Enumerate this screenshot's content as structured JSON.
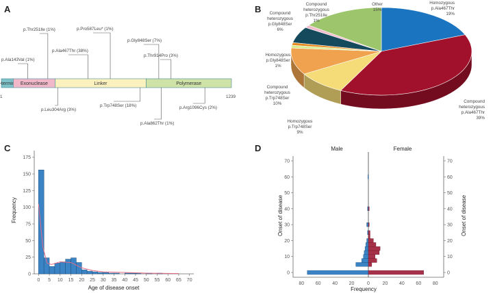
{
  "panel_letters": [
    "A",
    "B",
    "C",
    "D"
  ],
  "colors": {
    "nterminal": "#7fc3cb",
    "exonuclease": "#f0b8c8",
    "linker": "#fbf1bf",
    "polymerase": "#cfe2a8",
    "histogram": "#3a84c6",
    "male": "#3a84c6",
    "female": "#a8314a",
    "curve": "#e46b86"
  },
  "panel_a": {
    "domains": [
      {
        "name": "N-terminal",
        "start": 1,
        "end": 65
      },
      {
        "name": "Exonuclease",
        "start": 65,
        "end": 290
      },
      {
        "name": "Linker",
        "start": 290,
        "end": 780
      },
      {
        "name": "Polymerase",
        "start": 780,
        "end": 1239
      }
    ],
    "start_label": "1",
    "end_label": "1239",
    "mutations_above": [
      {
        "label": "p.Ala143Val (1%)",
        "pos": 143
      },
      {
        "label": "p.Thr251Ile (1%)",
        "pos": 251
      },
      {
        "label": "p.Ala467Thr (38%)",
        "pos": 467
      },
      {
        "label": "p.Pro587Leu* (1%)",
        "pos": 587
      },
      {
        "label": "p.Gly848Ser (7%)",
        "pos": 848
      },
      {
        "label": "p.Thr914Pro (3%)",
        "pos": 914
      }
    ],
    "mutations_below": [
      {
        "label": "p.Leu304Arg (3%)",
        "pos": 304
      },
      {
        "label": "p.Trp748Ser (18%)",
        "pos": 748
      },
      {
        "label": "p.Ala862Thr (1%)",
        "pos": 862
      },
      {
        "label": "p.Arg1096Cys (2%)",
        "pos": 1096
      }
    ]
  },
  "chart_data": [
    {
      "type": "pie",
      "panel": "B",
      "slices": [
        {
          "label": "Homozygous p.Ala467Thr",
          "value": 19,
          "display": "19%",
          "color": "#1b74c0"
        },
        {
          "label": "Compound heterozygous p.Ala467Thr",
          "value": 39,
          "display": "39%",
          "color": "#a1112c"
        },
        {
          "label": "Homozygous p.Trp748Ser",
          "value": 9,
          "display": "9%",
          "color": "#f6dc78"
        },
        {
          "label": "Compound heterozygous p.Trp748Ser",
          "value": 10,
          "display": "10%",
          "color": "#f0a24e"
        },
        {
          "label": "Homozygous p.Gly848Ser",
          "value": 1,
          "display": "1%",
          "color": "#d9ea8a"
        },
        {
          "label": "Homozygous p.Gly848Ser",
          "value": 1,
          "display": "1%",
          "color": "#e8891d"
        },
        {
          "label": "Compound heterozygous p.Gly848Ser",
          "value": 6,
          "display": "6%",
          "color": "#154a5c"
        },
        {
          "label": "Compound heterozygous p.Thr251Ile",
          "value": 1,
          "display": "1%",
          "color": "#f3bccd"
        },
        {
          "label": "Other",
          "value": 15,
          "display": "15%",
          "color": "#9cc56c"
        }
      ]
    },
    {
      "type": "bar",
      "panel": "C",
      "xlabel": "Age of disease onset",
      "ylabel": "Frequency",
      "x": [
        0,
        2.5,
        5,
        7.5,
        10,
        12.5,
        15,
        17.5,
        20,
        22.5,
        25,
        27.5,
        30,
        32.5,
        35,
        37.5,
        40,
        42.5,
        45,
        47.5,
        50,
        52.5,
        55,
        57.5,
        60,
        62.5
      ],
      "values": [
        156,
        24,
        11,
        16,
        18,
        22,
        24,
        17,
        6,
        4,
        3,
        2,
        2,
        1,
        1,
        0,
        1,
        1,
        1,
        0,
        1,
        0,
        1,
        0,
        0,
        0
      ],
      "bin_width": 2.5,
      "xticks": [
        0,
        5,
        10,
        15,
        20,
        25,
        30,
        35,
        40,
        45,
        50,
        55,
        60,
        65,
        70
      ],
      "yticks": [
        0,
        25,
        50,
        75,
        100,
        125,
        150,
        175
      ],
      "xlim": [
        -2,
        72
      ],
      "ylim": [
        0,
        185
      ],
      "curve": {
        "x": [
          0,
          2,
          4,
          6,
          10,
          15,
          20,
          25,
          30,
          40,
          50,
          65
        ],
        "y": [
          105,
          40,
          16,
          14,
          18,
          17,
          9,
          5,
          3,
          2,
          1,
          0.5
        ]
      }
    },
    {
      "type": "bar",
      "panel": "D",
      "orientation": "horizontal",
      "xlabel": "Frequency",
      "ylabel_left": "Onset of disease",
      "ylabel_right": "Onset of disease",
      "series": [
        {
          "name": "Male",
          "onset": [
            0,
            5,
            7.5,
            10,
            12.5,
            15,
            17.5,
            20,
            25,
            30,
            40,
            60
          ],
          "values": [
            73,
            15,
            8,
            6,
            5,
            4,
            3,
            2,
            1,
            2,
            1,
            0.5
          ]
        },
        {
          "name": "Female",
          "onset": [
            0,
            5,
            7.5,
            10,
            12.5,
            15,
            17.5,
            20,
            22.5,
            25,
            30,
            40
          ],
          "values": [
            66,
            4,
            10,
            8,
            13,
            14,
            9,
            6,
            2,
            2,
            1,
            1
          ]
        }
      ],
      "bin_height": 2.5,
      "xticks_left": [
        80,
        60,
        40,
        20,
        0
      ],
      "xticks_right": [
        0,
        20,
        40,
        60,
        80
      ],
      "yticks": [
        0,
        10,
        20,
        30,
        40,
        50,
        60,
        70
      ],
      "xlim": [
        -90,
        90
      ],
      "ylim": [
        -3,
        73
      ]
    }
  ]
}
